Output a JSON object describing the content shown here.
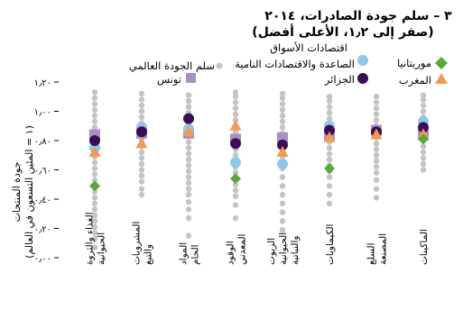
{
  "chart_data": {
    "type": "scatter",
    "title_line1": "٣ – سلم جودة الصادرات، ٢٠١٤",
    "title_line2": "(صفر إلى ١٫٢، الأعلى أفضل)",
    "ylabel_line1": "جودة المنتجات",
    "ylabel_line2": "(١ = المئين التسعون في العالم)",
    "ylim": [
      0,
      1.2
    ],
    "yticks": [
      0,
      0.2,
      0.4,
      0.6,
      0.8,
      1.0,
      1.2
    ],
    "ytick_labels": [
      "٠٫٠٠",
      "٠٫٢٠",
      "٠٫٤٠",
      "٠٫٦٠",
      "٠٫٨٠",
      "١٫٠٠",
      "١٫٢٠"
    ],
    "grid": false,
    "legend_position": "top",
    "categories": [
      [
        "الغذاء والثروة",
        "الحيوانية"
      ],
      [
        "المشروبات",
        "والتبغ"
      ],
      [
        "المواد",
        "الخام"
      ],
      [
        "الوقود",
        "المعدني"
      ],
      [
        "الزيوت",
        "الحيوانية",
        "والنباتية"
      ],
      [
        "الكيماويات"
      ],
      [
        "السلع",
        "المصنعة"
      ],
      [
        "الماكينات"
      ]
    ],
    "global_ladder": [
      [
        0.07,
        0.13,
        0.17,
        0.21,
        0.25,
        0.29,
        0.33,
        0.37,
        0.41,
        0.45,
        0.49,
        0.53,
        0.57,
        0.61,
        0.65,
        0.69,
        0.73,
        0.77,
        0.81,
        0.85,
        0.89,
        0.93,
        0.97,
        1.01,
        1.05,
        1.09,
        1.13
      ],
      [
        0.43,
        0.47,
        0.52,
        0.56,
        0.6,
        0.64,
        0.68,
        0.72,
        0.76,
        0.8,
        0.84,
        0.88,
        0.92,
        0.96,
        1.0,
        1.04,
        1.08,
        1.12
      ],
      [
        0.15,
        0.27,
        0.33,
        0.38,
        0.43,
        0.47,
        0.51,
        0.55,
        0.59,
        0.63,
        0.67,
        0.71,
        0.75,
        0.79,
        0.83,
        0.87,
        0.91,
        0.95,
        0.99,
        1.03,
        1.07,
        1.11
      ],
      [
        0.27,
        0.36,
        0.42,
        0.46,
        0.5,
        0.54,
        0.58,
        0.62,
        0.66,
        0.7,
        0.74,
        0.78,
        0.82,
        0.86,
        0.9,
        0.94,
        0.98,
        1.02,
        1.06,
        1.1,
        1.13
      ],
      [
        0.19,
        0.25,
        0.31,
        0.37,
        0.43,
        0.49,
        0.55,
        0.61,
        0.65,
        0.69,
        0.73,
        0.77,
        0.81,
        0.85,
        0.89,
        0.93,
        0.97,
        1.01,
        1.05,
        1.09,
        1.12
      ],
      [
        0.37,
        0.43,
        0.49,
        0.55,
        0.59,
        0.63,
        0.67,
        0.71,
        0.75,
        0.79,
        0.83,
        0.87,
        0.91,
        0.95,
        0.99,
        1.03,
        1.07,
        1.1
      ],
      [
        0.41,
        0.47,
        0.53,
        0.58,
        0.62,
        0.66,
        0.7,
        0.74,
        0.78,
        0.82,
        0.86,
        0.9,
        0.94,
        0.98,
        1.02,
        1.06,
        1.1
      ],
      [
        0.6,
        0.64,
        0.68,
        0.72,
        0.76,
        0.8,
        0.84,
        0.88,
        0.92,
        0.96,
        1.0,
        1.04,
        1.08,
        1.11
      ]
    ],
    "series": [
      {
        "name": "تونس",
        "marker": "square",
        "color": "#a98fc4",
        "values": [
          0.84,
          0.85,
          0.85,
          0.81,
          0.82,
          0.84,
          0.87,
          0.84
        ]
      },
      {
        "name": "اقتصادات الأسواق الصاعدة والاقتصادات النامية",
        "marker": "circle",
        "color": "#8ec8e8",
        "values": [
          0.75,
          0.89,
          0.88,
          0.65,
          0.64,
          0.9,
          0.86,
          0.93
        ]
      },
      {
        "name": "الجزائر",
        "marker": "circle",
        "color": "#3b0d52",
        "values": [
          0.8,
          0.86,
          0.95,
          0.78,
          0.77,
          0.87,
          0.86,
          0.89
        ]
      },
      {
        "name": "المغرب",
        "marker": "triangle",
        "color": "#f29a55",
        "values": [
          0.72,
          0.78,
          0.86,
          0.9,
          0.72,
          0.82,
          0.84,
          0.84
        ]
      },
      {
        "name": "موريتانيا",
        "marker": "diamond",
        "color": "#5aa83c",
        "values": [
          0.49,
          null,
          null,
          0.54,
          null,
          0.61,
          null,
          0.81
        ]
      }
    ],
    "legend": {
      "global_ladder_label": "سلم الجودة العالمي",
      "global_ladder_color": "#c4c4c4",
      "emerging_line1": "اقتصادات الأسواق",
      "emerging_line2": "الصاعدة والاقتصادات النامية",
      "tunisia": "تونس",
      "mauritania": "موريتانيا",
      "algeria": "الجزائر",
      "morocco": "المغرب"
    }
  }
}
